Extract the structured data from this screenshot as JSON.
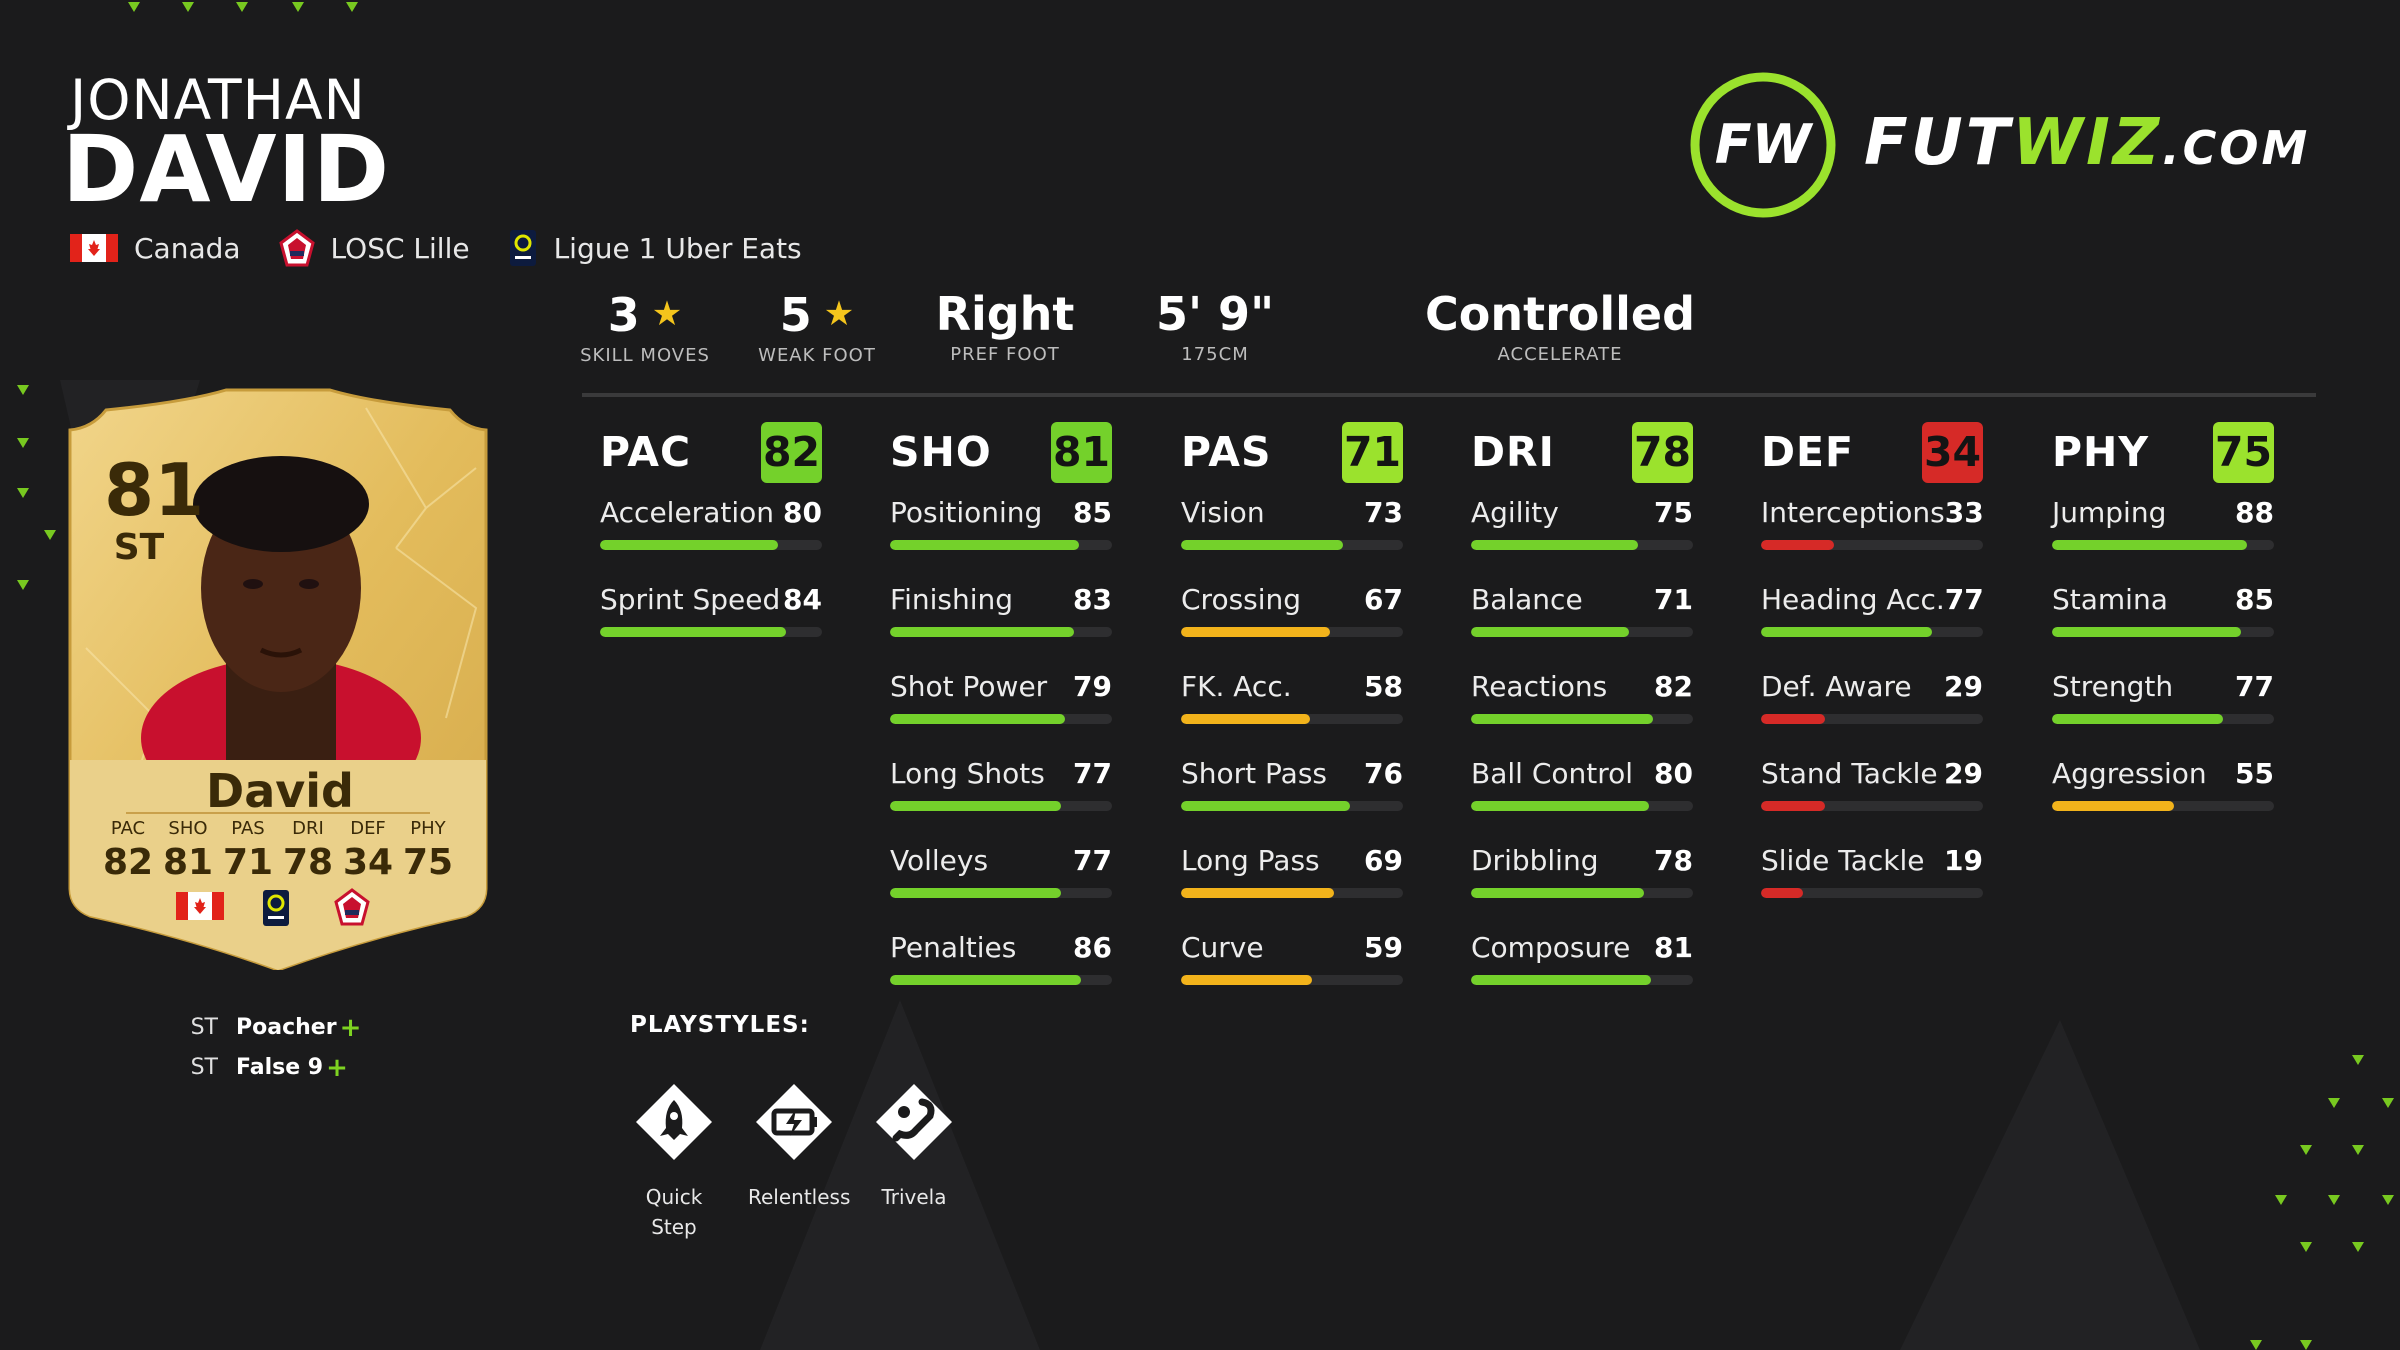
{
  "player": {
    "first_name": "JONATHAN",
    "last_name": "DAVID",
    "nation": "Canada",
    "club": "LOSC Lille",
    "league": "Ligue 1 Uber Eats"
  },
  "brand": {
    "logo_mark": "FW",
    "name_part1": "FUT",
    "name_part2": "WIZ",
    "name_part3": ".COM",
    "accent": "#9be22d"
  },
  "top_stats": [
    {
      "value": "3",
      "label": "SKILL MOVES",
      "star": true
    },
    {
      "value": "5",
      "label": "WEAK FOOT",
      "star": true
    },
    {
      "value": "Right",
      "label": "PREF FOOT",
      "star": false
    },
    {
      "value": "5' 9\"",
      "label": "175CM",
      "star": false
    },
    {
      "value": "Controlled",
      "label": "ACCELERATE",
      "star": false
    }
  ],
  "attributes": [
    {
      "name": "PAC",
      "value": "82",
      "stats": [
        {
          "name": "Acceleration",
          "value": 80
        },
        {
          "name": "Sprint Speed",
          "value": 84
        }
      ]
    },
    {
      "name": "SHO",
      "value": "81",
      "stats": [
        {
          "name": "Positioning",
          "value": 85
        },
        {
          "name": "Finishing",
          "value": 83
        },
        {
          "name": "Shot Power",
          "value": 79
        },
        {
          "name": "Long Shots",
          "value": 77
        },
        {
          "name": "Volleys",
          "value": 77
        },
        {
          "name": "Penalties",
          "value": 86
        }
      ]
    },
    {
      "name": "PAS",
      "value": "71",
      "stats": [
        {
          "name": "Vision",
          "value": 73
        },
        {
          "name": "Crossing",
          "value": 67
        },
        {
          "name": "FK. Acc.",
          "value": 58
        },
        {
          "name": "Short Pass",
          "value": 76
        },
        {
          "name": "Long Pass",
          "value": 69
        },
        {
          "name": "Curve",
          "value": 59
        }
      ]
    },
    {
      "name": "DRI",
      "value": "78",
      "stats": [
        {
          "name": "Agility",
          "value": 75
        },
        {
          "name": "Balance",
          "value": 71
        },
        {
          "name": "Reactions",
          "value": 82
        },
        {
          "name": "Ball Control",
          "value": 80
        },
        {
          "name": "Dribbling",
          "value": 78
        },
        {
          "name": "Composure",
          "value": 81
        }
      ]
    },
    {
      "name": "DEF",
      "value": "34",
      "stats": [
        {
          "name": "Interceptions",
          "value": 33
        },
        {
          "name": "Heading Acc.",
          "value": 77
        },
        {
          "name": "Def. Aware",
          "value": 29
        },
        {
          "name": "Stand Tackle",
          "value": 29
        },
        {
          "name": "Slide Tackle",
          "value": 19
        }
      ]
    },
    {
      "name": "PHY",
      "value": "75",
      "stats": [
        {
          "name": "Jumping",
          "value": 88
        },
        {
          "name": "Stamina",
          "value": 85
        },
        {
          "name": "Strength",
          "value": 77
        },
        {
          "name": "Aggression",
          "value": 55
        }
      ]
    }
  ],
  "card": {
    "rating": "81",
    "position": "ST",
    "name": "David",
    "stats": [
      {
        "label": "PAC",
        "value": "82"
      },
      {
        "label": "SHO",
        "value": "81"
      },
      {
        "label": "PAS",
        "value": "71"
      },
      {
        "label": "DRI",
        "value": "78"
      },
      {
        "label": "DEF",
        "value": "34"
      },
      {
        "label": "PHY",
        "value": "75"
      }
    ]
  },
  "chem_styles": [
    {
      "position": "ST",
      "name": "Poacher",
      "plus": "+"
    },
    {
      "position": "ST",
      "name": "False 9",
      "plus": "+"
    }
  ],
  "playstyles": {
    "title": "PLAYSTYLES:",
    "items": [
      {
        "name": "Quick Step",
        "icon": "rocket-icon"
      },
      {
        "name": "Relentless",
        "icon": "battery-icon"
      },
      {
        "name": "Trivela",
        "icon": "curl-kick-icon"
      }
    ]
  },
  "colors": {
    "green_bright": "#74d12b",
    "green_light": "#9be22d",
    "yellow": "#f2b31b",
    "red": "#d62a27",
    "card_gold": "#e6c061"
  }
}
